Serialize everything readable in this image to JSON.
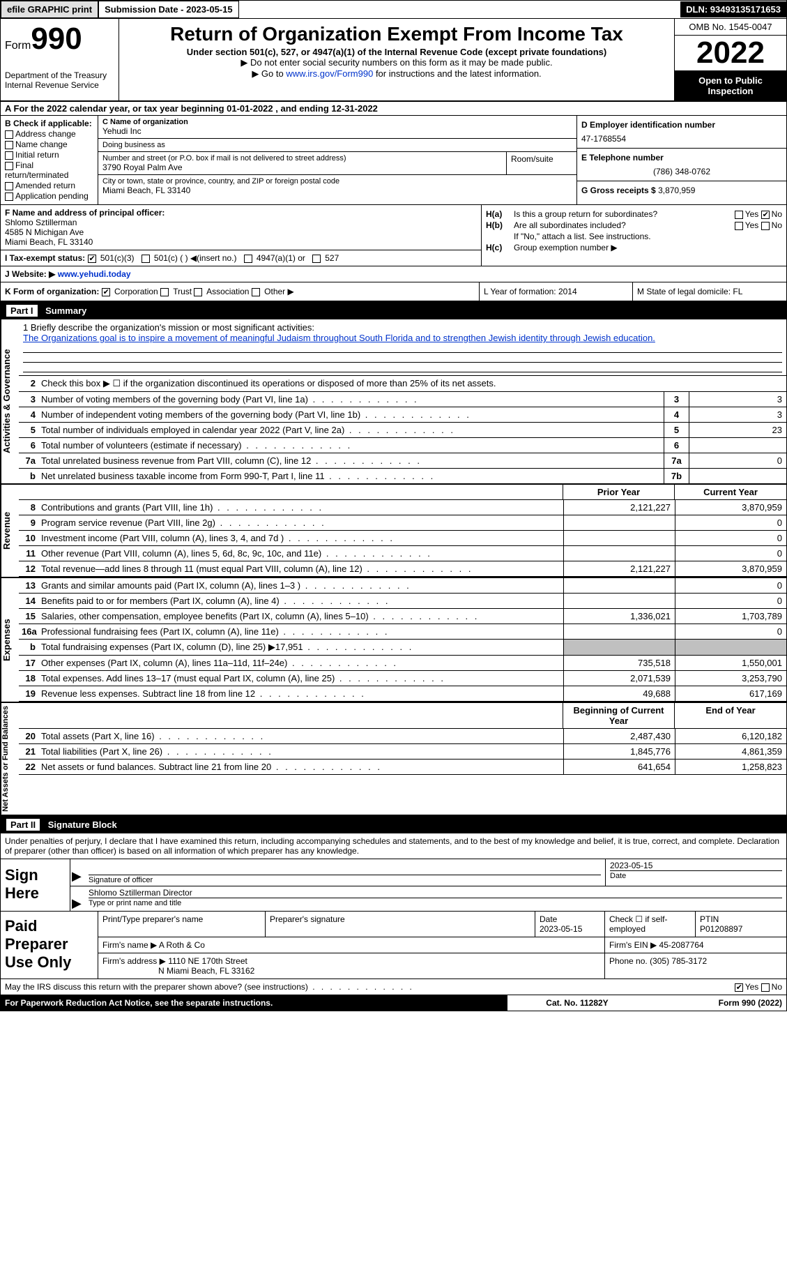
{
  "topbar": {
    "efile": "efile GRAPHIC print",
    "submission": "Submission Date - 2023-05-15",
    "dln": "DLN: 93493135171653"
  },
  "header": {
    "form_prefix": "Form",
    "form_number": "990",
    "dept": "Department of the Treasury\nInternal Revenue Service",
    "title": "Return of Organization Exempt From Income Tax",
    "subtitle": "Under section 501(c), 527, or 4947(a)(1) of the Internal Revenue Code (except private foundations)",
    "note1": "▶ Do not enter social security numbers on this form as it may be made public.",
    "note2_prefix": "▶ Go to ",
    "note2_link": "www.irs.gov/Form990",
    "note2_suffix": " for instructions and the latest information.",
    "omb": "OMB No. 1545-0047",
    "year": "2022",
    "open": "Open to Public Inspection"
  },
  "rowA": "A  For the 2022 calendar year, or tax year beginning 01-01-2022   , and ending 12-31-2022",
  "sectionB": {
    "b_title": "B Check if applicable:",
    "checks": [
      "Address change",
      "Name change",
      "Initial return",
      "Final return/terminated",
      "Amended return",
      "Application pending"
    ],
    "c_label": "C Name of organization",
    "c_name": "Yehudi Inc",
    "dba_label": "Doing business as",
    "dba": "",
    "street_label": "Number and street (or P.O. box if mail is not delivered to street address)",
    "street": "3790 Royal Palm Ave",
    "room_label": "Room/suite",
    "city_label": "City or town, state or province, country, and ZIP or foreign postal code",
    "city": "Miami Beach, FL  33140",
    "d_label": "D Employer identification number",
    "d_val": "47-1768554",
    "e_label": "E Telephone number",
    "e_val": "(786) 348-0762",
    "g_label": "G Gross receipts $",
    "g_val": "3,870,959"
  },
  "fgh": {
    "f_label": "F  Name and address of principal officer:",
    "f_name": "Shlomo Sztillerman",
    "f_addr1": "4585 N Michigan Ave",
    "f_addr2": "Miami Beach, FL  33140",
    "i_label": "I  Tax-exempt status:",
    "i_501c3": "501(c)(3)",
    "i_501c": "501(c) (  ) ◀(insert no.)",
    "i_4947": "4947(a)(1) or",
    "i_527": "527",
    "ha_label": "H(a)",
    "ha_text": "Is this a group return for subordinates?",
    "hb_label": "H(b)",
    "hb_text": "Are all subordinates included?",
    "hb_note": "If \"No,\" attach a list. See instructions.",
    "hc_label": "H(c)",
    "hc_text": "Group exemption number ▶",
    "yes": "Yes",
    "no": "No"
  },
  "rowJ": {
    "label": "J  Website: ▶",
    "val": "www.yehudi.today"
  },
  "rowKLM": {
    "k": "K Form of organization:",
    "k_corp": "Corporation",
    "k_trust": "Trust",
    "k_assoc": "Association",
    "k_other": "Other ▶",
    "l": "L Year of formation: 2014",
    "m": "M State of legal domicile: FL"
  },
  "part1": {
    "header_num": "Part I",
    "header_title": "Summary",
    "tabs": [
      "Activities & Governance",
      "Revenue",
      "Expenses",
      "Net Assets or Fund Balances"
    ],
    "mission_label": "1   Briefly describe the organization's mission or most significant activities:",
    "mission_text": "The Organizations goal is to inspire a movement of meaningful Judaism throughout South Florida and to strengthen Jewish identity through Jewish education.",
    "line2": "Check this box ▶ ☐  if the organization discontinued its operations or disposed of more than 25% of its net assets.",
    "gov_lines": [
      {
        "n": "3",
        "d": "Number of voting members of the governing body (Part VI, line 1a)",
        "b": "3",
        "v": "3"
      },
      {
        "n": "4",
        "d": "Number of independent voting members of the governing body (Part VI, line 1b)",
        "b": "4",
        "v": "3"
      },
      {
        "n": "5",
        "d": "Total number of individuals employed in calendar year 2022 (Part V, line 2a)",
        "b": "5",
        "v": "23"
      },
      {
        "n": "6",
        "d": "Total number of volunteers (estimate if necessary)",
        "b": "6",
        "v": ""
      },
      {
        "n": "7a",
        "d": "Total unrelated business revenue from Part VIII, column (C), line 12",
        "b": "7a",
        "v": "0"
      },
      {
        "n": "b",
        "d": "Net unrelated business taxable income from Form 990-T, Part I, line 11",
        "b": "7b",
        "v": ""
      }
    ],
    "hdr_prior": "Prior Year",
    "hdr_current": "Current Year",
    "rev_lines": [
      {
        "n": "8",
        "d": "Contributions and grants (Part VIII, line 1h)",
        "c1": "2,121,227",
        "c2": "3,870,959"
      },
      {
        "n": "9",
        "d": "Program service revenue (Part VIII, line 2g)",
        "c1": "",
        "c2": "0"
      },
      {
        "n": "10",
        "d": "Investment income (Part VIII, column (A), lines 3, 4, and 7d )",
        "c1": "",
        "c2": "0"
      },
      {
        "n": "11",
        "d": "Other revenue (Part VIII, column (A), lines 5, 6d, 8c, 9c, 10c, and 11e)",
        "c1": "",
        "c2": "0"
      },
      {
        "n": "12",
        "d": "Total revenue—add lines 8 through 11 (must equal Part VIII, column (A), line 12)",
        "c1": "2,121,227",
        "c2": "3,870,959"
      }
    ],
    "exp_lines": [
      {
        "n": "13",
        "d": "Grants and similar amounts paid (Part IX, column (A), lines 1–3 )",
        "c1": "",
        "c2": "0"
      },
      {
        "n": "14",
        "d": "Benefits paid to or for members (Part IX, column (A), line 4)",
        "c1": "",
        "c2": "0"
      },
      {
        "n": "15",
        "d": "Salaries, other compensation, employee benefits (Part IX, column (A), lines 5–10)",
        "c1": "1,336,021",
        "c2": "1,703,789"
      },
      {
        "n": "16a",
        "d": "Professional fundraising fees (Part IX, column (A), line 11e)",
        "c1": "",
        "c2": "0"
      },
      {
        "n": "b",
        "d": "Total fundraising expenses (Part IX, column (D), line 25) ▶17,951",
        "c1": "shaded",
        "c2": "shaded"
      },
      {
        "n": "17",
        "d": "Other expenses (Part IX, column (A), lines 11a–11d, 11f–24e)",
        "c1": "735,518",
        "c2": "1,550,001"
      },
      {
        "n": "18",
        "d": "Total expenses. Add lines 13–17 (must equal Part IX, column (A), line 25)",
        "c1": "2,071,539",
        "c2": "3,253,790"
      },
      {
        "n": "19",
        "d": "Revenue less expenses. Subtract line 18 from line 12",
        "c1": "49,688",
        "c2": "617,169"
      }
    ],
    "hdr_begin": "Beginning of Current Year",
    "hdr_end": "End of Year",
    "net_lines": [
      {
        "n": "20",
        "d": "Total assets (Part X, line 16)",
        "c1": "2,487,430",
        "c2": "6,120,182"
      },
      {
        "n": "21",
        "d": "Total liabilities (Part X, line 26)",
        "c1": "1,845,776",
        "c2": "4,861,359"
      },
      {
        "n": "22",
        "d": "Net assets or fund balances. Subtract line 21 from line 20",
        "c1": "641,654",
        "c2": "1,258,823"
      }
    ]
  },
  "part2": {
    "header_num": "Part II",
    "header_title": "Signature Block",
    "declare": "Under penalties of perjury, I declare that I have examined this return, including accompanying schedules and statements, and to the best of my knowledge and belief, it is true, correct, and complete. Declaration of preparer (other than officer) is based on all information of which preparer has any knowledge.",
    "sign_here": "Sign Here",
    "sig_officer_label": "Signature of officer",
    "sig_date": "2023-05-15",
    "date_label": "Date",
    "name_title": "Shlomo Sztillerman  Director",
    "name_label": "Type or print name and title",
    "paid_prep": "Paid Preparer Use Only",
    "prep_name_label": "Print/Type preparer's name",
    "prep_sig_label": "Preparer's signature",
    "prep_date_label": "Date",
    "prep_date": "2023-05-15",
    "self_emp": "Check ☐ if self-employed",
    "ptin_label": "PTIN",
    "ptin": "P01208897",
    "firm_name_label": "Firm's name    ▶",
    "firm_name": "A Roth & Co",
    "firm_ein_label": "Firm's EIN ▶",
    "firm_ein": "45-2087764",
    "firm_addr_label": "Firm's address ▶",
    "firm_addr1": "1110 NE 170th Street",
    "firm_addr2": "N Miami Beach, FL  33162",
    "phone_label": "Phone no.",
    "phone": "(305) 785-3172",
    "discuss": "May the IRS discuss this return with the preparer shown above? (see instructions)",
    "yes": "Yes",
    "no": "No"
  },
  "footer": {
    "pra": "For Paperwork Reduction Act Notice, see the separate instructions.",
    "cat": "Cat. No. 11282Y",
    "form": "Form 990 (2022)"
  }
}
